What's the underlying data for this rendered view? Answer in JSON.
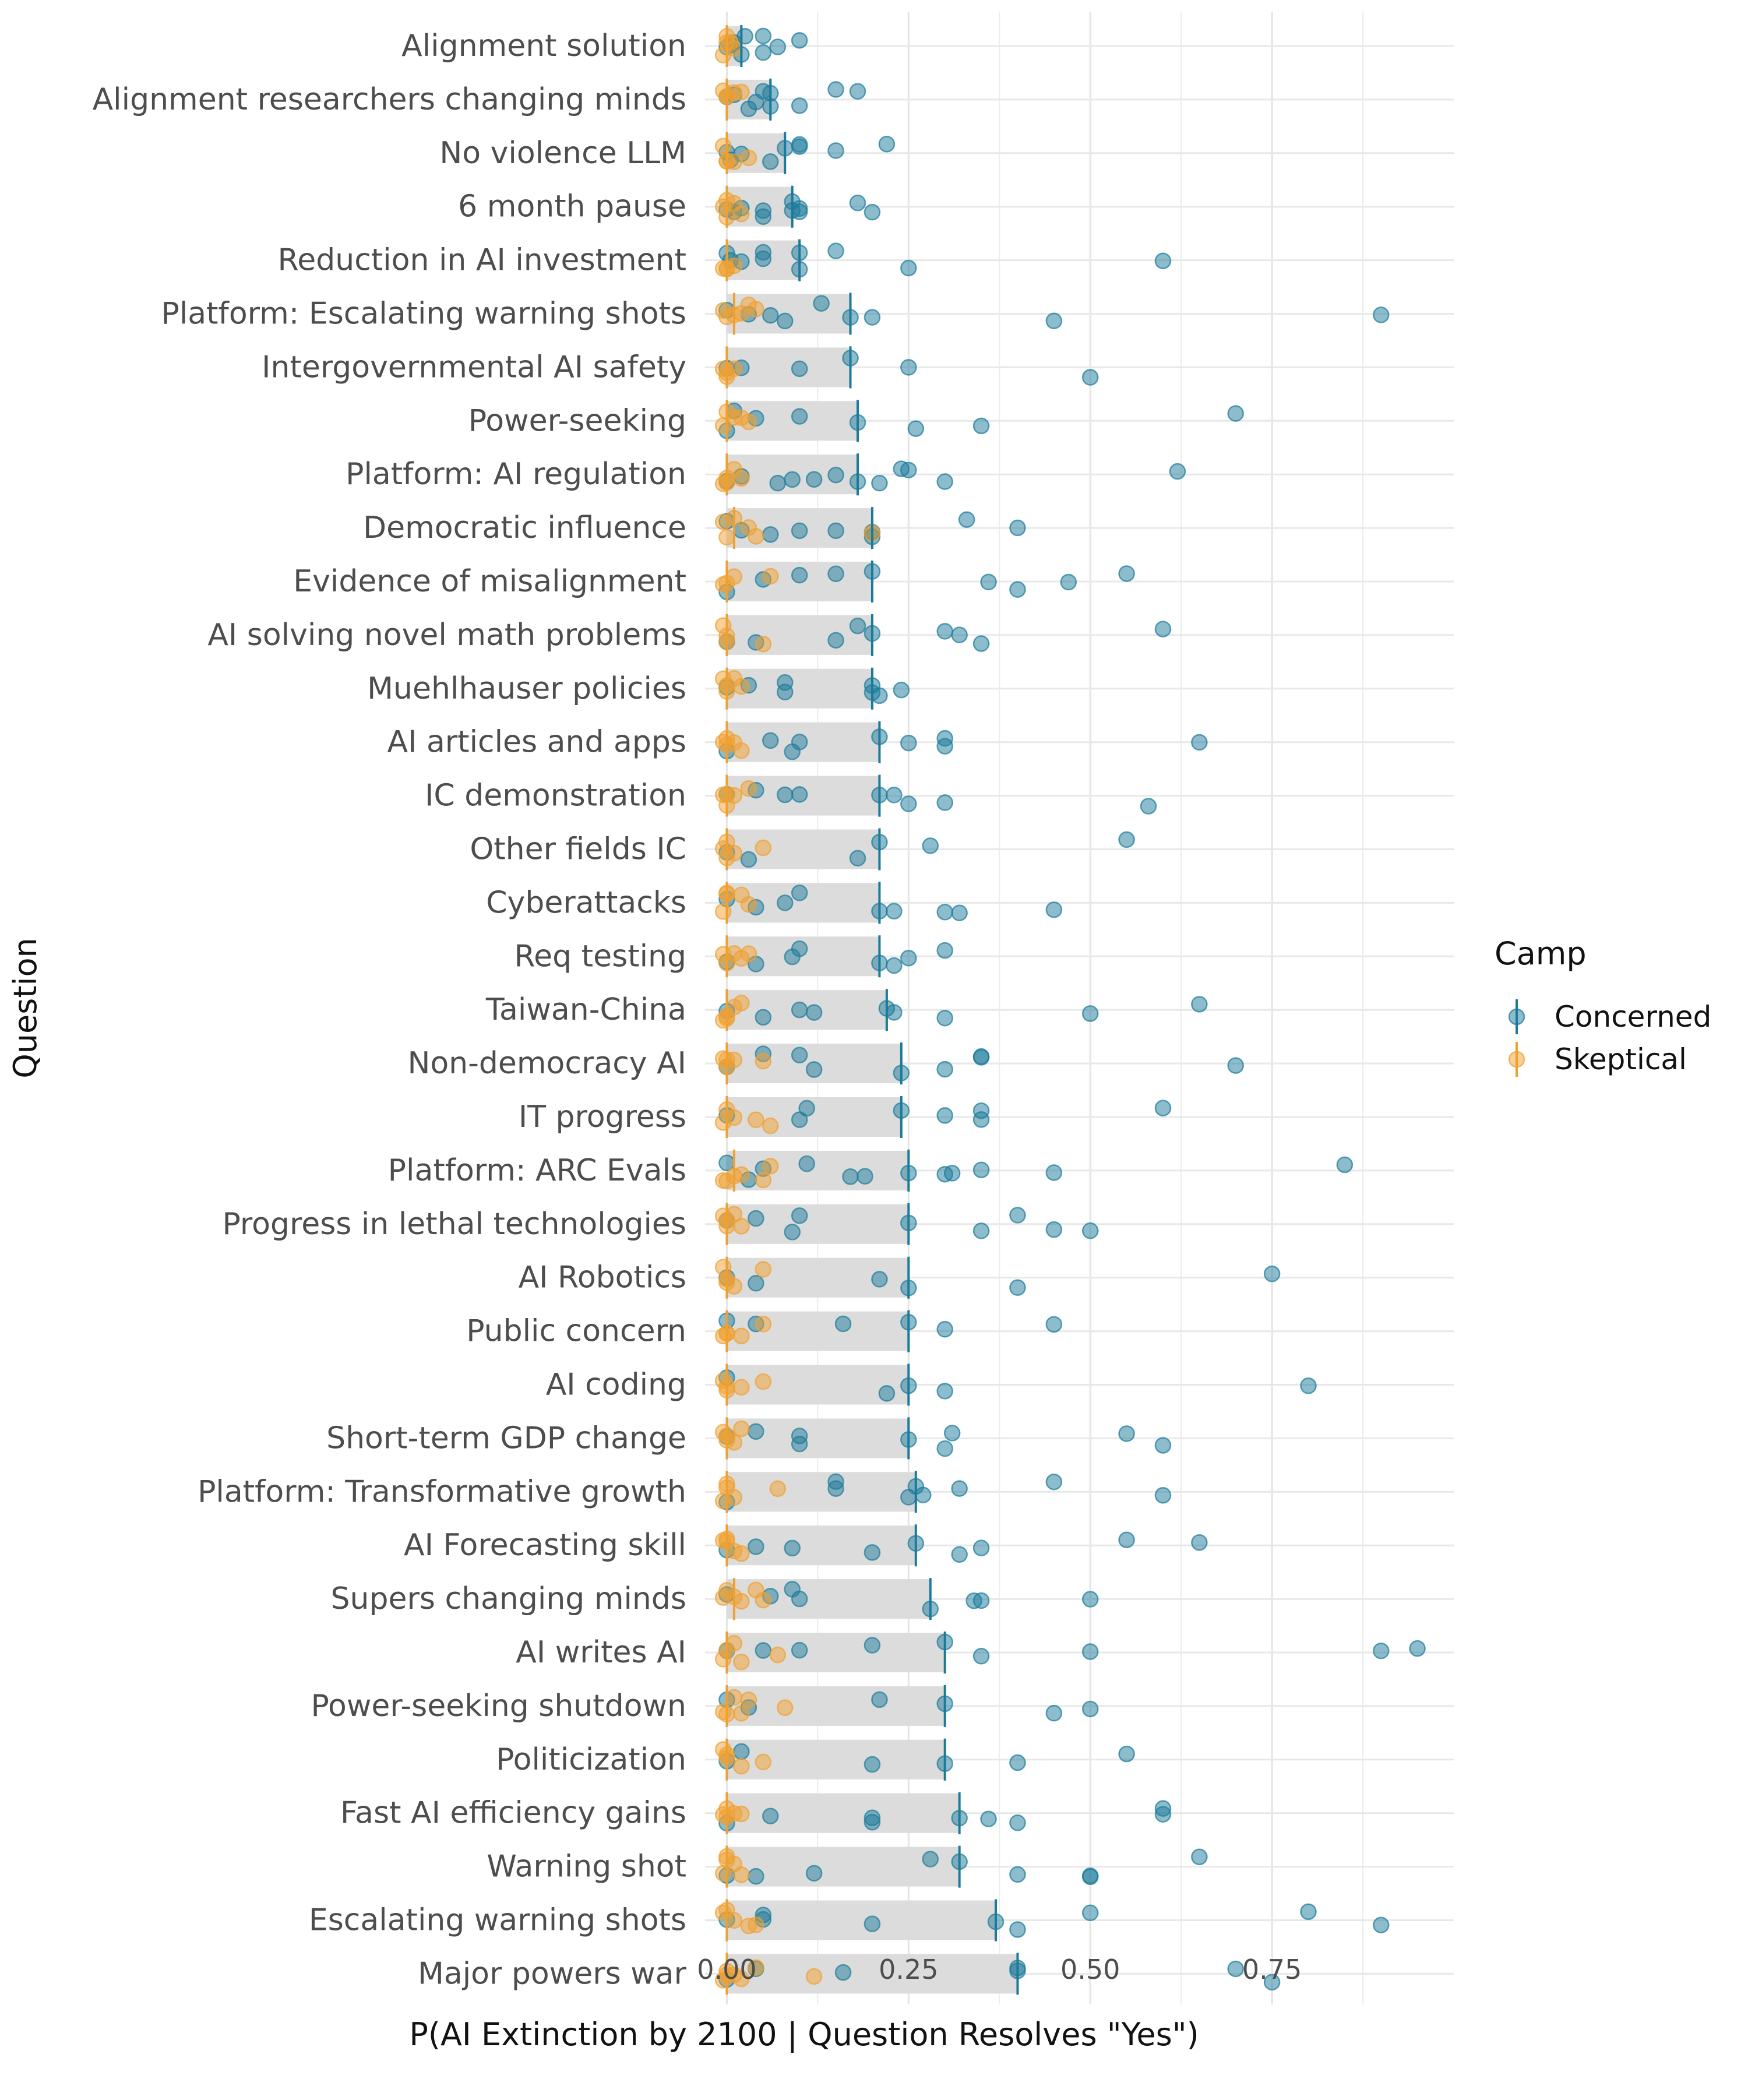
{
  "chart_data": {
    "type": "scatter",
    "xlabel": "P(AI Extinction by 2100 | Question Resolves \"Yes\")",
    "ylabel": "Question",
    "xlim": [
      -0.03,
      1.0
    ],
    "xticks": [
      0,
      0.25,
      0.5,
      0.75
    ],
    "xtick_labels": [
      "0.00",
      "0.25",
      "0.50",
      "0.75"
    ],
    "grid": true,
    "legend": {
      "title": "Camp",
      "position": "right",
      "entries": [
        {
          "name": "Concerned",
          "color": "#1b7a9a"
        },
        {
          "name": "Skeptical",
          "color": "#f0a030"
        }
      ]
    },
    "bar_color": "#dcdcdc",
    "categories": [
      "Alignment solution",
      "Alignment researchers changing minds",
      "No violence LLM",
      "6 month pause",
      "Reduction in AI investment",
      "Platform: Escalating warning shots",
      "Intergovernmental AI safety",
      "Power-seeking",
      "Platform: AI regulation",
      "Democratic influence",
      "Evidence of misalignment",
      "AI solving novel math problems",
      "Muehlhauser policies",
      "AI articles and apps",
      "IC demonstration",
      "Other fields IC",
      "Cyberattacks",
      "Req testing",
      "Taiwan-China",
      "Non-democracy AI",
      "IT progress",
      "Platform: ARC Evals",
      "Progress in lethal technologies",
      "AI Robotics",
      "Public concern",
      "AI coding",
      "Short-term GDP change",
      "Platform: Transformative growth",
      "AI Forecasting skill",
      "Supers changing minds",
      "AI writes AI",
      "Power-seeking shutdown",
      "Politicization",
      "Fast AI efficiency gains",
      "Warning shot",
      "Escalating warning shots",
      "Major powers war"
    ],
    "series": [
      {
        "name": "Concerned",
        "medians": [
          0.02,
          0.06,
          0.08,
          0.09,
          0.1,
          0.17,
          0.17,
          0.18,
          0.18,
          0.2,
          0.2,
          0.2,
          0.2,
          0.21,
          0.21,
          0.21,
          0.21,
          0.21,
          0.22,
          0.24,
          0.24,
          0.25,
          0.25,
          0.25,
          0.25,
          0.25,
          0.25,
          0.26,
          0.26,
          0.28,
          0.3,
          0.3,
          0.3,
          0.32,
          0.32,
          0.37,
          0.4
        ],
        "points": [
          [
            0.0,
            0.005,
            0.01,
            0.02,
            0.025,
            0.05,
            0.05,
            0.07,
            0.1
          ],
          [
            0.0,
            0.01,
            0.03,
            0.04,
            0.05,
            0.06,
            0.06,
            0.1,
            0.15,
            0.18
          ],
          [
            0.0,
            0.005,
            0.02,
            0.06,
            0.08,
            0.1,
            0.1,
            0.15,
            0.22
          ],
          [
            0.0,
            0.01,
            0.02,
            0.05,
            0.05,
            0.09,
            0.09,
            0.1,
            0.1,
            0.18,
            0.2
          ],
          [
            0.0,
            0.005,
            0.02,
            0.05,
            0.05,
            0.1,
            0.1,
            0.15,
            0.25,
            0.6
          ],
          [
            0.0,
            0.03,
            0.06,
            0.08,
            0.13,
            0.17,
            0.2,
            0.45,
            0.9
          ],
          [
            0.0,
            0.02,
            0.1,
            0.17,
            0.25,
            0.5
          ],
          [
            0.0,
            0.01,
            0.04,
            0.1,
            0.18,
            0.26,
            0.35,
            0.7
          ],
          [
            0.0,
            0.02,
            0.07,
            0.09,
            0.12,
            0.15,
            0.18,
            0.21,
            0.24,
            0.25,
            0.3,
            0.62
          ],
          [
            0.0,
            0.02,
            0.06,
            0.1,
            0.15,
            0.2,
            0.2,
            0.33,
            0.4
          ],
          [
            0.0,
            0.05,
            0.1,
            0.15,
            0.2,
            0.36,
            0.4,
            0.47,
            0.55
          ],
          [
            0.0,
            0.04,
            0.15,
            0.18,
            0.2,
            0.3,
            0.32,
            0.35,
            0.6
          ],
          [
            0.0,
            0.03,
            0.08,
            0.08,
            0.2,
            0.2,
            0.21,
            0.24
          ],
          [
            0.0,
            0.06,
            0.09,
            0.1,
            0.21,
            0.25,
            0.3,
            0.3,
            0.65
          ],
          [
            0.0,
            0.04,
            0.08,
            0.1,
            0.21,
            0.23,
            0.25,
            0.3,
            0.58
          ],
          [
            0.0,
            0.03,
            0.18,
            0.21,
            0.28,
            0.55
          ],
          [
            0.0,
            0.04,
            0.08,
            0.1,
            0.21,
            0.23,
            0.3,
            0.32,
            0.45
          ],
          [
            0.0,
            0.04,
            0.09,
            0.1,
            0.21,
            0.23,
            0.25,
            0.3
          ],
          [
            0.0,
            0.05,
            0.1,
            0.12,
            0.22,
            0.23,
            0.3,
            0.5,
            0.65
          ],
          [
            0.0,
            0.05,
            0.1,
            0.12,
            0.24,
            0.3,
            0.35,
            0.35,
            0.7
          ],
          [
            0.0,
            0.1,
            0.11,
            0.24,
            0.3,
            0.35,
            0.35,
            0.6
          ],
          [
            0.0,
            0.03,
            0.05,
            0.11,
            0.17,
            0.19,
            0.25,
            0.31,
            0.3,
            0.35,
            0.45,
            0.85
          ],
          [
            0.0,
            0.04,
            0.09,
            0.1,
            0.25,
            0.35,
            0.4,
            0.45,
            0.5
          ],
          [
            0.0,
            0.04,
            0.21,
            0.25,
            0.4,
            0.75
          ],
          [
            0.0,
            0.04,
            0.16,
            0.25,
            0.3,
            0.45
          ],
          [
            0.0,
            0.22,
            0.25,
            0.3,
            0.8
          ],
          [
            0.0,
            0.04,
            0.1,
            0.1,
            0.25,
            0.3,
            0.31,
            0.55,
            0.6
          ],
          [
            0.0,
            0.15,
            0.15,
            0.25,
            0.26,
            0.27,
            0.32,
            0.45,
            0.6
          ],
          [
            0.0,
            0.04,
            0.09,
            0.2,
            0.26,
            0.32,
            0.35,
            0.55,
            0.65
          ],
          [
            0.0,
            0.06,
            0.09,
            0.1,
            0.28,
            0.34,
            0.35,
            0.5
          ],
          [
            0.0,
            0.05,
            0.1,
            0.2,
            0.3,
            0.35,
            0.5,
            0.9,
            0.95
          ],
          [
            0.0,
            0.03,
            0.21,
            0.3,
            0.45,
            0.5
          ],
          [
            0.0,
            0.02,
            0.2,
            0.3,
            0.4,
            0.55
          ],
          [
            0.0,
            0.06,
            0.2,
            0.2,
            0.32,
            0.36,
            0.4,
            0.6,
            0.6
          ],
          [
            0.0,
            0.04,
            0.12,
            0.28,
            0.32,
            0.4,
            0.5,
            0.5,
            0.65
          ],
          [
            0.0,
            0.05,
            0.05,
            0.2,
            0.37,
            0.4,
            0.5,
            0.8,
            0.9
          ],
          [
            0.0,
            0.04,
            0.16,
            0.4,
            0.4,
            0.7,
            0.75
          ]
        ]
      },
      {
        "name": "Skeptical",
        "medians": [
          0.0,
          0.0,
          0.0,
          0.0,
          0.0,
          0.01,
          0.0,
          0.0,
          0.0,
          0.01,
          0.0,
          0.0,
          0.0,
          0.0,
          0.0,
          0.0,
          0.0,
          0.0,
          0.0,
          0.0,
          0.0,
          0.01,
          0.0,
          0.0,
          0.0,
          0.0,
          0.0,
          0.0,
          0.0,
          0.01,
          0.0,
          0.0,
          0.0,
          0.0,
          0.0,
          0.0,
          0.0
        ],
        "points": [
          [
            -0.005,
            0.0,
            0.0,
            0.005,
            0.01
          ],
          [
            -0.005,
            0.0,
            0.0,
            0.01,
            0.02
          ],
          [
            -0.005,
            0.0,
            0.0,
            0.01,
            0.03
          ],
          [
            -0.005,
            0.0,
            0.0,
            0.01,
            0.02
          ],
          [
            -0.005,
            0.0,
            0.0,
            0.01
          ],
          [
            -0.005,
            0.0,
            0.01,
            0.02,
            0.03,
            0.04
          ],
          [
            -0.005,
            0.0,
            0.0,
            0.01
          ],
          [
            -0.005,
            0.0,
            0.01,
            0.02,
            0.03
          ],
          [
            -0.005,
            0.0,
            0.0,
            0.01,
            0.02
          ],
          [
            -0.005,
            0.0,
            0.01,
            0.03,
            0.04,
            0.2
          ],
          [
            -0.005,
            0.0,
            0.01,
            0.06
          ],
          [
            -0.005,
            0.0,
            0.0,
            0.05
          ],
          [
            -0.005,
            0.0,
            0.0,
            0.01,
            0.02
          ],
          [
            -0.005,
            0.0,
            0.0,
            0.01,
            0.02
          ],
          [
            -0.005,
            0.0,
            0.0,
            0.01,
            0.03
          ],
          [
            -0.005,
            0.0,
            0.0,
            0.01,
            0.05
          ],
          [
            -0.005,
            0.0,
            0.0,
            0.02,
            0.03
          ],
          [
            -0.005,
            0.0,
            0.01,
            0.02,
            0.03
          ],
          [
            -0.005,
            0.0,
            0.0,
            0.01,
            0.02
          ],
          [
            -0.005,
            0.0,
            0.0,
            0.01,
            0.05
          ],
          [
            -0.005,
            0.0,
            0.01,
            0.04,
            0.06
          ],
          [
            -0.005,
            0.0,
            0.01,
            0.02,
            0.05,
            0.06
          ],
          [
            -0.005,
            0.0,
            0.0,
            0.01,
            0.02
          ],
          [
            -0.005,
            0.0,
            0.0,
            0.01,
            0.05
          ],
          [
            -0.005,
            0.0,
            0.0,
            0.02,
            0.05
          ],
          [
            -0.005,
            0.0,
            0.0,
            0.02,
            0.05
          ],
          [
            -0.005,
            0.0,
            0.0,
            0.01,
            0.02
          ],
          [
            -0.005,
            0.0,
            0.0,
            0.01,
            0.07
          ],
          [
            -0.005,
            0.0,
            0.0,
            0.01,
            0.02
          ],
          [
            -0.005,
            0.0,
            0.01,
            0.02,
            0.04,
            0.05
          ],
          [
            -0.005,
            0.0,
            0.01,
            0.02,
            0.07
          ],
          [
            -0.005,
            0.0,
            0.01,
            0.02,
            0.03,
            0.08
          ],
          [
            -0.005,
            0.0,
            0.0,
            0.02,
            0.05
          ],
          [
            -0.005,
            0.0,
            0.0,
            0.01,
            0.02
          ],
          [
            -0.005,
            0.0,
            0.0,
            0.01,
            0.02
          ],
          [
            -0.005,
            0.0,
            0.01,
            0.03,
            0.04
          ],
          [
            -0.005,
            0.0,
            0.0,
            0.01,
            0.02,
            0.04,
            0.12
          ]
        ]
      }
    ]
  }
}
